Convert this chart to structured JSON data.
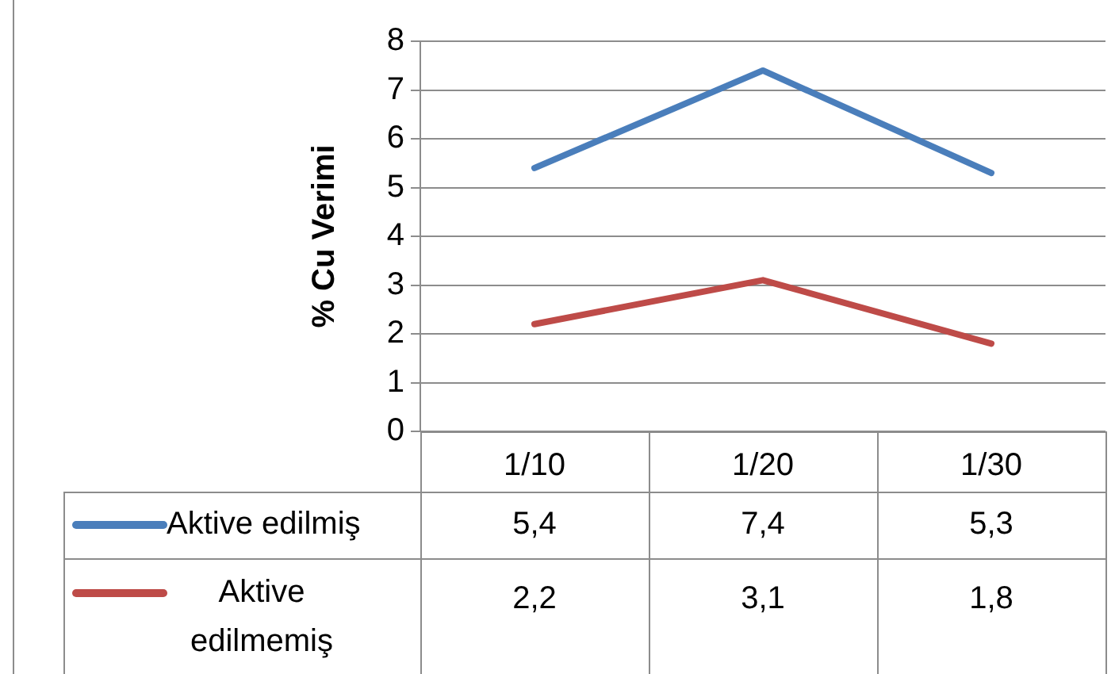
{
  "chart_data": {
    "type": "line",
    "ylabel": "% Cu Verimi",
    "categories": [
      "1/10",
      "1/20",
      "1/30"
    ],
    "series": [
      {
        "name": "Aktive edilmiş",
        "color": "#4a7ebb",
        "values": [
          5.4,
          7.4,
          5.3
        ],
        "value_labels": [
          "5,4",
          "7,4",
          "5,3"
        ]
      },
      {
        "name": "Aktive edilmemiş",
        "color": "#be4b48",
        "values": [
          2.2,
          3.1,
          1.8
        ],
        "value_labels": [
          "2,2",
          "3,1",
          "1,8"
        ]
      }
    ],
    "ylim": [
      0,
      8
    ],
    "yticks": [
      0,
      1,
      2,
      3,
      4,
      5,
      6,
      7,
      8
    ],
    "grid": "y",
    "legend": "bottom",
    "marker": "none"
  }
}
